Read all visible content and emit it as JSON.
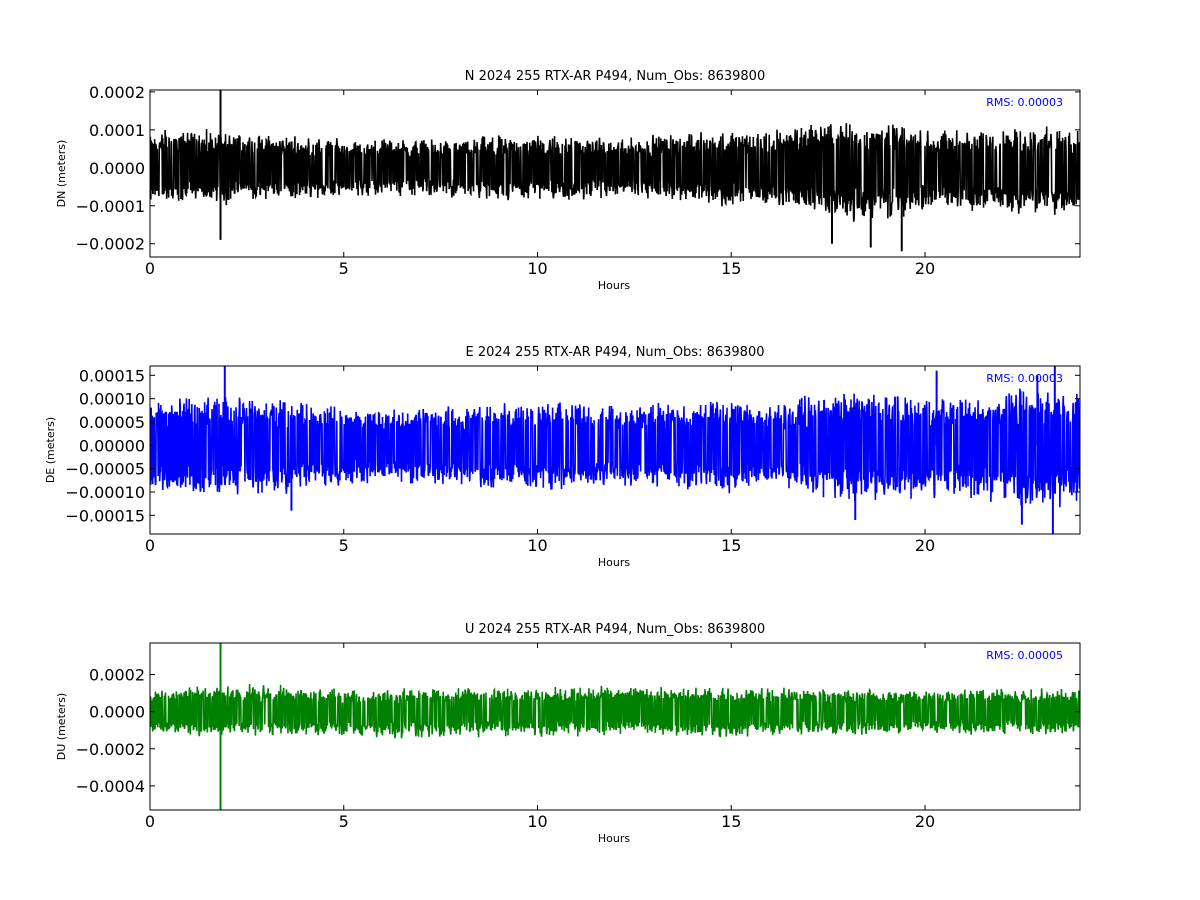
{
  "chart_data": [
    {
      "type": "line",
      "title": "N 2024 255 RTX-AR  P494, Num_Obs: 8639800",
      "xlabel": "Hours",
      "ylabel": "DN (meters)",
      "xlim": [
        0,
        24
      ],
      "ylim": [
        -0.000235,
        0.000205
      ],
      "xticks": [
        0,
        5,
        10,
        15,
        20
      ],
      "xtick_labels": [
        "0",
        "5",
        "10",
        "15",
        "20"
      ],
      "yticks": [
        0.0002,
        0.0001,
        0.0,
        -0.0001,
        -0.0002
      ],
      "ytick_labels": [
        "0.0002",
        "0.0001",
        "0.0000",
        "−0.0001",
        "−0.0002"
      ],
      "color": "#000000",
      "rms_label": "RMS:  0.00003",
      "rms_color": "#0000ff",
      "grid": false,
      "series": [
        {
          "x": [
            0,
            1,
            2,
            3,
            4,
            5,
            6,
            7,
            8,
            9,
            10,
            11,
            12,
            13,
            14,
            15,
            16,
            17,
            18,
            19,
            20,
            21,
            22,
            23,
            24
          ],
          "upper": [
            0.00011,
            0.00011,
            0.0001,
            9e-05,
            9e-05,
            8e-05,
            8e-05,
            8e-05,
            8e-05,
            9e-05,
            9e-05,
            9e-05,
            8e-05,
            9e-05,
            0.0001,
            0.00011,
            0.0001,
            0.00013,
            0.00013,
            0.00012,
            0.00011,
            0.0001,
            0.00011,
            0.00011,
            0.00012
          ],
          "lower": [
            -0.0001,
            -0.0001,
            -0.0001,
            -9e-05,
            -9e-05,
            -8e-05,
            -8e-05,
            -8e-05,
            -8e-05,
            -9e-05,
            -9e-05,
            -9e-05,
            -8e-05,
            -9e-05,
            -0.0001,
            -0.00011,
            -0.0001,
            -0.00013,
            -0.00015,
            -0.00014,
            -0.00012,
            -0.00012,
            -0.00013,
            -0.00013,
            -0.00013
          ],
          "spikes": [
            {
              "x": 1.82,
              "y": 0.000205
            },
            {
              "x": 1.82,
              "y": -0.00019
            },
            {
              "x": 18.6,
              "y": -0.00021
            },
            {
              "x": 19.4,
              "y": -0.00022
            },
            {
              "x": 17.6,
              "y": -0.0002
            }
          ]
        }
      ]
    },
    {
      "type": "line",
      "title": "E 2024 255 RTX-AR  P494, Num_Obs: 8639800",
      "xlabel": "Hours",
      "ylabel": "DE (meters)",
      "xlim": [
        0,
        24
      ],
      "ylim": [
        -0.00019,
        0.00017
      ],
      "xticks": [
        0,
        5,
        10,
        15,
        20
      ],
      "xtick_labels": [
        "0",
        "5",
        "10",
        "15",
        "20"
      ],
      "yticks": [
        0.00015,
        0.0001,
        5e-05,
        0.0,
        -5e-05,
        -0.0001,
        -0.00015
      ],
      "ytick_labels": [
        "0.00015",
        "0.00010",
        "0.00005",
        "0.00000",
        "−0.00005",
        "−0.00010",
        "−0.00015"
      ],
      "color": "#0000ff",
      "rms_label": "RMS:  0.00003",
      "rms_color": "#0000ff",
      "grid": false,
      "series": [
        {
          "x": [
            0,
            1,
            2,
            3,
            4,
            5,
            6,
            7,
            8,
            9,
            10,
            11,
            12,
            13,
            14,
            15,
            16,
            17,
            18,
            19,
            20,
            21,
            22,
            23,
            24
          ],
          "upper": [
            0.0001,
            0.00011,
            0.00011,
            0.00011,
            0.0001,
            9e-05,
            8e-05,
            9e-05,
            9e-05,
            0.0001,
            0.0001,
            0.0001,
            9e-05,
            0.0001,
            0.0001,
            0.00011,
            9e-05,
            0.00011,
            0.00012,
            0.00012,
            0.00011,
            0.00011,
            0.00012,
            0.00013,
            0.00012
          ],
          "lower": [
            -0.0001,
            -0.00011,
            -0.00011,
            -0.00011,
            -0.0001,
            -9e-05,
            -8e-05,
            -9e-05,
            -9e-05,
            -0.0001,
            -0.0001,
            -0.0001,
            -9e-05,
            -0.0001,
            -0.0001,
            -0.00011,
            -9e-05,
            -0.00011,
            -0.00013,
            -0.00012,
            -0.00012,
            -0.00012,
            -0.00013,
            -0.00014,
            -0.00013
          ],
          "spikes": [
            {
              "x": 1.93,
              "y": 0.00017
            },
            {
              "x": 3.65,
              "y": -0.00014
            },
            {
              "x": 23.35,
              "y": 0.00017
            },
            {
              "x": 22.9,
              "y": 0.00015
            },
            {
              "x": 23.3,
              "y": -0.00019
            },
            {
              "x": 22.5,
              "y": -0.00017
            },
            {
              "x": 18.2,
              "y": -0.00016
            },
            {
              "x": 20.3,
              "y": 0.00016
            }
          ]
        }
      ]
    },
    {
      "type": "line",
      "title": "U 2024 255 RTX-AR  P494, Num_Obs: 8639800",
      "xlabel": "Hours",
      "ylabel": "DU (meters)",
      "xlim": [
        0,
        24
      ],
      "ylim": [
        -0.00053,
        0.00037
      ],
      "xticks": [
        0,
        5,
        10,
        15,
        20
      ],
      "xtick_labels": [
        "0",
        "5",
        "10",
        "15",
        "20"
      ],
      "yticks": [
        0.0002,
        0.0,
        -0.0002,
        -0.0004
      ],
      "ytick_labels": [
        "0.0002",
        "0.0000",
        "−0.0002",
        "−0.0004"
      ],
      "color": "#008000",
      "rms_label": "RMS:  0.00005",
      "rms_color": "#0000ff",
      "grid": false,
      "series": [
        {
          "x": [
            0,
            1,
            2,
            3,
            4,
            5,
            6,
            7,
            8,
            9,
            10,
            11,
            12,
            13,
            14,
            15,
            16,
            17,
            18,
            19,
            20,
            21,
            22,
            23,
            24
          ],
          "upper": [
            0.00014,
            0.00015,
            0.00015,
            0.00015,
            0.00014,
            0.00013,
            0.00013,
            0.00013,
            0.00014,
            0.00014,
            0.00014,
            0.00014,
            0.00014,
            0.00014,
            0.00014,
            0.00014,
            0.00014,
            0.00013,
            0.00013,
            0.00013,
            0.00013,
            0.00013,
            0.00013,
            0.00013,
            0.00013
          ],
          "lower": [
            -0.00012,
            -0.00014,
            -0.00014,
            -0.00014,
            -0.00014,
            -0.00014,
            -0.00015,
            -0.00015,
            -0.00014,
            -0.00014,
            -0.00014,
            -0.00014,
            -0.00013,
            -0.00013,
            -0.00014,
            -0.00015,
            -0.00013,
            -0.00013,
            -0.00013,
            -0.00013,
            -0.00013,
            -0.00013,
            -0.00013,
            -0.00013,
            -0.00013
          ],
          "spikes": [
            {
              "x": 1.82,
              "y": 0.00037
            },
            {
              "x": 1.82,
              "y": -0.00053
            }
          ]
        }
      ]
    }
  ]
}
